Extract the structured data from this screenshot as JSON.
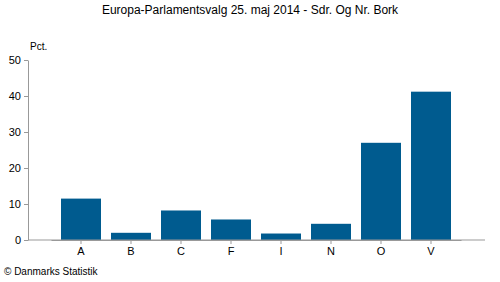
{
  "chart_data": {
    "type": "bar",
    "title": "Europa-Parlamentsvalg 25. maj 2014 - Sdr. Og Nr. Bork",
    "y_label": "Pct.",
    "source": "© Danmarks Statistik",
    "categories": [
      "A",
      "B",
      "C",
      "F",
      "I",
      "N",
      "O",
      "V"
    ],
    "values": [
      11.5,
      2.0,
      8.2,
      5.7,
      1.8,
      4.5,
      27.0,
      41.2
    ],
    "color": "#005b8f",
    "ylim": [
      0,
      50
    ],
    "yticks": [
      0,
      10,
      20,
      30,
      40,
      50
    ],
    "grid": false
  }
}
